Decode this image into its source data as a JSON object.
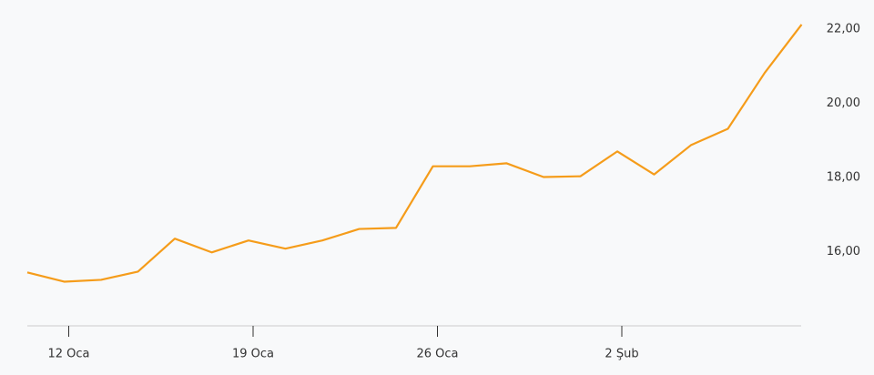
{
  "chart_data": {
    "type": "line",
    "categories": [
      null,
      "12 Oca",
      null,
      null,
      null,
      null,
      "19 Oca",
      null,
      null,
      null,
      null,
      "26 Oca",
      null,
      null,
      null,
      null,
      "2 Şub",
      null,
      null,
      null,
      null,
      null
    ],
    "series": [
      {
        "color": "#f59c1a",
        "values": [
          15.44,
          15.19,
          15.24,
          15.46,
          16.35,
          15.98,
          16.3,
          16.08,
          16.3,
          16.61,
          16.64,
          18.3,
          18.3,
          18.38,
          18.01,
          18.03,
          18.7,
          18.08,
          18.87,
          19.31,
          20.82,
          22.12
        ]
      }
    ],
    "ylim": [
      14,
      22.78
    ],
    "yticks": [
      {
        "value": 16,
        "label": "16,00"
      },
      {
        "value": 18,
        "label": "18,00"
      },
      {
        "value": 20,
        "label": "20,00"
      },
      {
        "value": 22,
        "label": "22,00"
      }
    ],
    "grid": false
  }
}
